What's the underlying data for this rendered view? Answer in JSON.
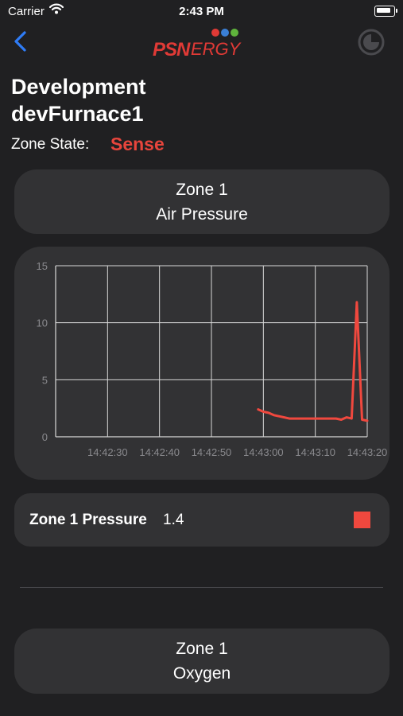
{
  "status_bar": {
    "carrier": "Carrier",
    "time": "2:43 PM"
  },
  "header": {
    "logo_psn": "PSN",
    "logo_ergy": "ERGY"
  },
  "title": {
    "line1": "Development",
    "line2": "devFurnace1"
  },
  "zone_state": {
    "label": "Zone State:",
    "value": "Sense"
  },
  "air_pressure_button": {
    "line1": "Zone 1",
    "line2": "Air Pressure"
  },
  "chart_data": {
    "type": "line",
    "ylim": [
      0,
      15
    ],
    "y_ticks": [
      0,
      5,
      10,
      15
    ],
    "x_ticks": [
      "14:42:30",
      "14:42:40",
      "14:42:50",
      "14:43:00",
      "14:43:10",
      "14:43:20"
    ],
    "grid": true,
    "series": [
      {
        "color": "#f0483e",
        "x": [
          "14:42:59",
          "14:43:00",
          "14:43:01",
          "14:43:02",
          "14:43:03",
          "14:43:04",
          "14:43:05",
          "14:43:06",
          "14:43:07",
          "14:43:08",
          "14:43:09",
          "14:43:10",
          "14:43:11",
          "14:43:12",
          "14:43:13",
          "14:43:14",
          "14:43:15",
          "14:43:16",
          "14:43:17",
          "14:43:18",
          "14:43:19",
          "14:43:20"
        ],
        "y": [
          2.4,
          2.2,
          2.1,
          1.9,
          1.8,
          1.7,
          1.6,
          1.6,
          1.6,
          1.6,
          1.6,
          1.6,
          1.6,
          1.6,
          1.6,
          1.6,
          1.5,
          1.7,
          1.6,
          11.8,
          1.5,
          1.4
        ]
      }
    ]
  },
  "pressure_reading": {
    "label": "Zone 1 Pressure",
    "value": "1.4",
    "color": "#f0483e"
  },
  "oxygen_button": {
    "line1": "Zone 1",
    "line2": "Oxygen"
  },
  "colors": {
    "accent_red": "#e8453c",
    "background": "#202022",
    "card": "#323234",
    "ios_blue": "#2f7cf6"
  }
}
